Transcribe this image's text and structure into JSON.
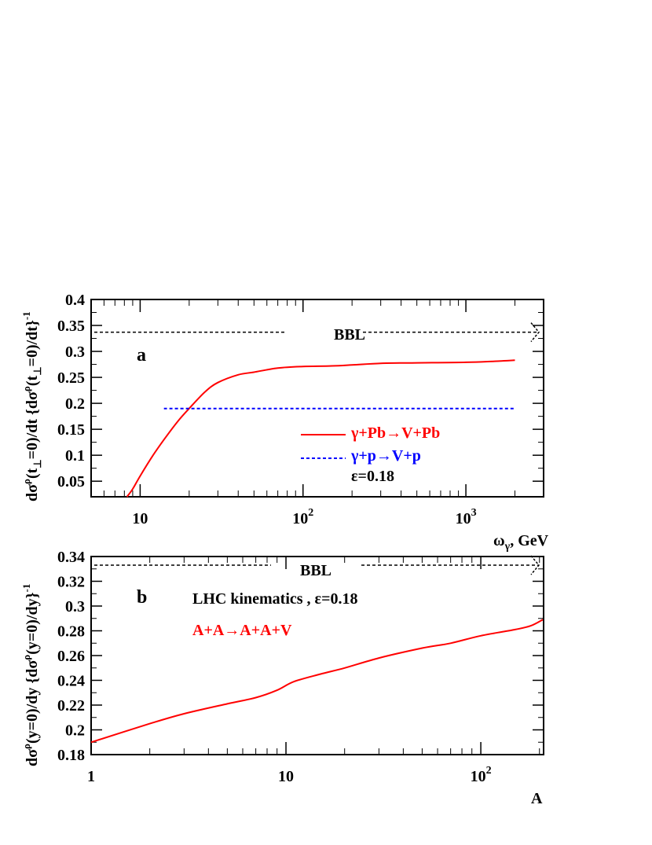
{
  "chart_data": [
    {
      "type": "line",
      "panel_label": "a",
      "xlabel": "ω",
      "xlabel_sub": "γ",
      "xlabel_unit": ", GeV",
      "ylabel": "dσ",
      "ylabel_full": "dσ^ρ(t_⊥=0)/dt {dσ^ρ(t_⊥=0)/dt}^-1",
      "x_scale": "log",
      "xlim": [
        5,
        3000
      ],
      "ylim": [
        0.02,
        0.4
      ],
      "x_ticks": [
        {
          "v": 10,
          "base": "10",
          "exp": ""
        },
        {
          "v": 100,
          "base": "10",
          "exp": "2"
        },
        {
          "v": 1000,
          "base": "10",
          "exp": "3"
        }
      ],
      "y_ticks": [
        "0.05",
        "0.1",
        "0.15",
        "0.2",
        "0.25",
        "0.3",
        "0.35",
        "0.4"
      ],
      "grid": false,
      "bbl": {
        "label": "BBL",
        "y": 0.337
      },
      "series": [
        {
          "name": "γ+Pb→V+Pb",
          "color": "#ff0000",
          "style": "solid",
          "x": [
            8.3,
            9,
            10,
            12,
            14,
            17,
            20,
            25,
            30,
            40,
            50,
            70,
            100,
            150,
            200,
            300,
            500,
            1000,
            1500,
            2000
          ],
          "y": [
            0.02,
            0.035,
            0.06,
            0.1,
            0.13,
            0.165,
            0.19,
            0.222,
            0.24,
            0.255,
            0.26,
            0.268,
            0.271,
            0.272,
            0.274,
            0.277,
            0.278,
            0.279,
            0.281,
            0.283
          ]
        },
        {
          "name": "γ+p→V+p",
          "color": "#0000ff",
          "style": "dashed",
          "x": [
            14,
            2000
          ],
          "y": [
            0.19,
            0.19
          ]
        }
      ],
      "annotation": "ε=0.18"
    },
    {
      "type": "line",
      "panel_label": "b",
      "xlabel": "A",
      "ylabel": "dσ",
      "ylabel_full": "dσ^ρ(y=0)/dy {dσ^ρ(y=0)/dy}^-1",
      "x_scale": "log",
      "xlim": [
        1,
        210
      ],
      "ylim": [
        0.18,
        0.34
      ],
      "x_ticks": [
        {
          "v": 1,
          "base": "1",
          "exp": ""
        },
        {
          "v": 10,
          "base": "10",
          "exp": ""
        },
        {
          "v": 100,
          "base": "10",
          "exp": "2"
        }
      ],
      "y_ticks": [
        "0.18",
        "0.2",
        "0.22",
        "0.24",
        "0.26",
        "0.28",
        "0.3",
        "0.32",
        "0.34"
      ],
      "grid": false,
      "bbl": {
        "label": "BBL",
        "y": 0.333
      },
      "series": [
        {
          "name": "A+A→A+A+V",
          "color": "#ff0000",
          "style": "solid",
          "x": [
            1,
            2,
            3,
            5,
            7,
            9,
            11,
            15,
            20,
            30,
            50,
            70,
            100,
            150,
            180,
            208
          ],
          "y": [
            0.19,
            0.205,
            0.213,
            0.221,
            0.226,
            0.232,
            0.239,
            0.245,
            0.25,
            0.258,
            0.266,
            0.27,
            0.276,
            0.281,
            0.284,
            0.289
          ]
        }
      ],
      "annotation": "LHC kinematics ,  ε=0.18"
    }
  ]
}
